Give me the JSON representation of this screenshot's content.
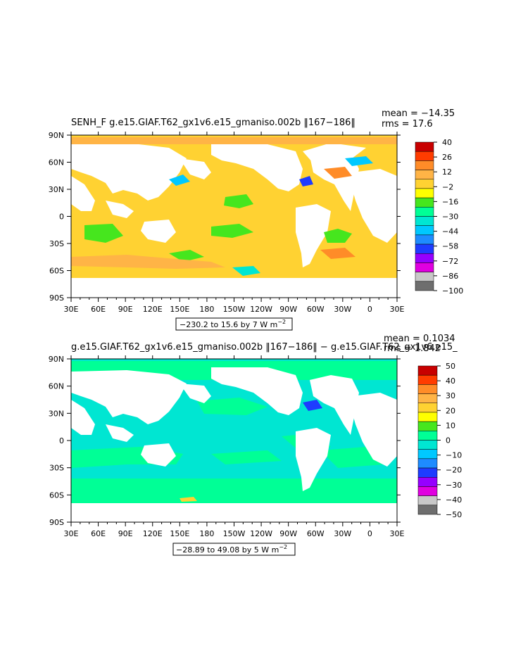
{
  "colors": {
    "land": "#ffffff",
    "axis": "#000000",
    "contour_scale": [
      "#6e6e6e",
      "#c8c8c8",
      "#e000e0",
      "#9600ff",
      "#1e3cff",
      "#1e8cff",
      "#00c8ff",
      "#00e6d2",
      "#00ff96",
      "#46e61e",
      "#ffff00",
      "#ffd232",
      "#ffb446",
      "#ff8c28",
      "#ff3c00",
      "#c80000"
    ]
  },
  "chart_data": [
    {
      "type": "heatmap",
      "panel": "top",
      "variable": "SENH_F",
      "title": "SENH_F  g.e15.GIAF.T62_gx1v6.e15_gmaniso.002b  ‖167−186‖",
      "stats": {
        "mean": "mean = −14.35",
        "rms": "rms = 17.6"
      },
      "range_text": "−230.2 to 15.6 by 7  W m",
      "range_units_exp": "−2",
      "range": {
        "min": -230.2,
        "max": 15.6,
        "interval": 7,
        "units": "W m-2"
      },
      "x_ticks": [
        "30E",
        "60E",
        "90E",
        "120E",
        "150E",
        "180",
        "150W",
        "120W",
        "90W",
        "60W",
        "30W",
        "0",
        "30E"
      ],
      "y_ticks": [
        "90N",
        "60N",
        "30N",
        "0",
        "30S",
        "60S",
        "90S"
      ],
      "colorbar_labels": [
        "40",
        "26",
        "12",
        "−2",
        "−16",
        "−30",
        "−44",
        "−58",
        "−72",
        "−86",
        "−100"
      ],
      "colorbar_levels": [
        40,
        26,
        12,
        -2,
        -16,
        -30,
        -44,
        -58,
        -72,
        -86,
        -100
      ],
      "dominant_color": "#ffd232"
    },
    {
      "type": "heatmap",
      "panel": "bottom",
      "title": "g.e15.GIAF.T62_gx1v6.e15_gmaniso.002b  ‖167−186‖  −  g.e15.GIAF.T62_gx1v6.e15_",
      "stats": {
        "mean": "mean = 0.1034",
        "rms": "rms = 1.842"
      },
      "range_text": "−28.89 to 49.08 by 5  W m",
      "range_units_exp": "−2",
      "range": {
        "min": -28.89,
        "max": 49.08,
        "interval": 5,
        "units": "W m-2"
      },
      "x_ticks": [
        "30E",
        "60E",
        "90E",
        "120E",
        "150E",
        "180",
        "150W",
        "120W",
        "90W",
        "60W",
        "30W",
        "0",
        "30E"
      ],
      "y_ticks": [
        "90N",
        "60N",
        "30N",
        "0",
        "30S",
        "60S",
        "90S"
      ],
      "colorbar_labels": [
        "50",
        "40",
        "30",
        "20",
        "10",
        "0",
        "−10",
        "−20",
        "−30",
        "−40",
        "−50"
      ],
      "colorbar_levels": [
        50,
        40,
        30,
        20,
        10,
        0,
        -10,
        -20,
        -30,
        -40,
        -50
      ],
      "dominant_color": "#00ff96"
    }
  ]
}
